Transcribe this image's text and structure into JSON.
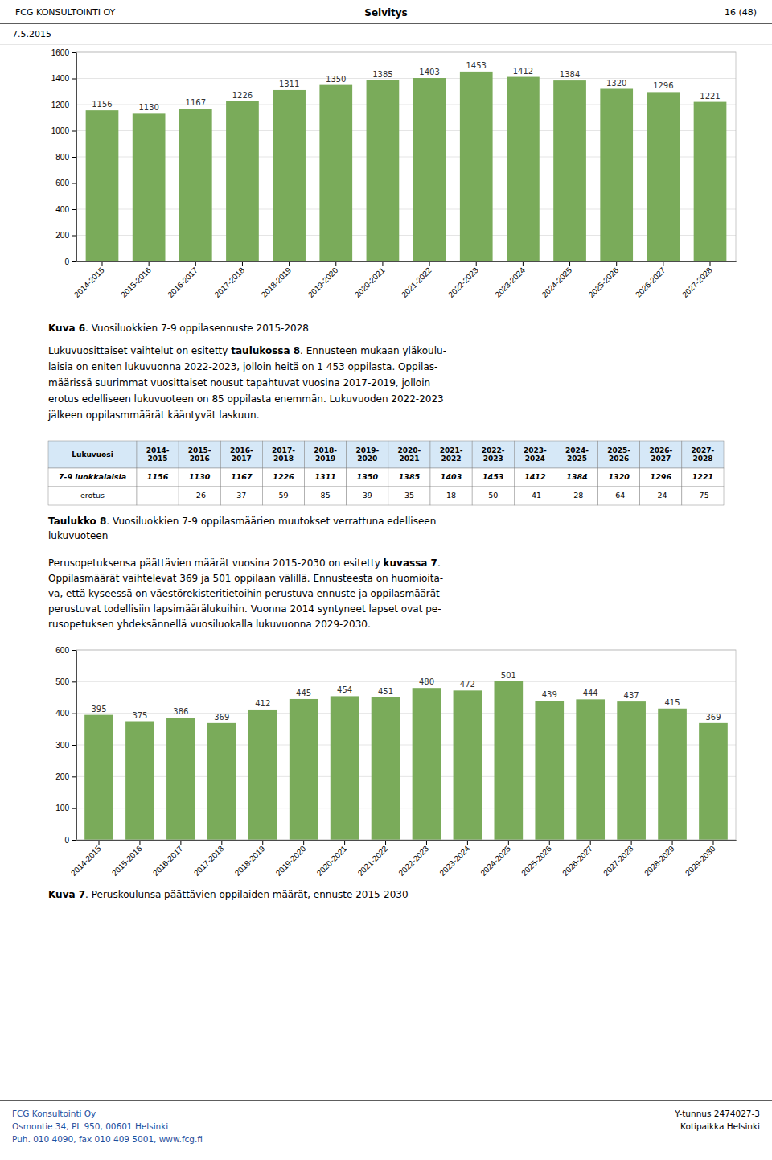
{
  "chart_data": [
    {
      "type": "bar",
      "categories": [
        "2014-2015",
        "2015-2016",
        "2016-2017",
        "2017-2018",
        "2018-2019",
        "2019-2020",
        "2020-2021",
        "2021-2022",
        "2022-2023",
        "2023-2024",
        "2024-2025",
        "2025-2026",
        "2026-2027",
        "2027-2028"
      ],
      "values": [
        1156,
        1130,
        1167,
        1226,
        1311,
        1350,
        1385,
        1403,
        1453,
        1412,
        1384,
        1320,
        1296,
        1221
      ],
      "color": "#7aab5a",
      "ylim": [
        0,
        1600
      ],
      "yticks": [
        0,
        200,
        400,
        600,
        800,
        1000,
        1200,
        1400,
        1600
      ],
      "grid": true,
      "data_labels": true
    },
    {
      "type": "bar",
      "categories": [
        "2014-2015",
        "2015-2016",
        "2016-2017",
        "2017-2018",
        "2018-2019",
        "2019-2020",
        "2020-2021",
        "2021-2022",
        "2022-2023",
        "2023-2024",
        "2024-2025",
        "2025-2026",
        "2026-2027",
        "2027-2028",
        "2028-2029",
        "2029-2030"
      ],
      "values": [
        395,
        375,
        386,
        369,
        412,
        445,
        454,
        451,
        480,
        472,
        501,
        439,
        444,
        437,
        415,
        369
      ],
      "color": "#7aab5a",
      "ylim": [
        0,
        600
      ],
      "yticks": [
        0,
        100,
        200,
        300,
        400,
        500,
        600
      ],
      "grid": true,
      "data_labels": true
    }
  ],
  "document": {
    "header": {
      "left": "FCG KONSULTOINTI OY",
      "center": "Selvitys",
      "right": "16 (48)"
    },
    "date": "7.5.2015",
    "caption1": {
      "bold": "Kuva 6",
      "text": ". Vuosiluokkien 7-9 oppilasennuste 2015-2028"
    },
    "text1": {
      "first": {
        "pre": "Lukuvuosittaiset vaihtelut on esitetty ",
        "bold": "taulukossa 8",
        "post": ". Ennusteen mukaan yläkoulu-"
      },
      "lines": [
        "laisia on eniten lukuvuonna 2022-2023, jolloin heitä on 1 453 oppilasta. Oppilas-",
        "määrissä suurimmat vuosittaiset nousut tapahtuvat vuosina 2017-2019, jolloin",
        "erotus edelliseen lukuvuoteen on 85 oppilasta enemmän. Lukuvuoden 2022-2023",
        "jälkeen oppilasmmäärät kääntyvät laskuun."
      ]
    },
    "table": {
      "header": [
        "Lukuvuosi",
        "2014-\n2015",
        "2015-\n2016",
        "2016-\n2017",
        "2017-\n2018",
        "2018-\n2019",
        "2019-\n2020",
        "2020-\n2021",
        "2021-\n2022",
        "2022-\n2023",
        "2023-\n2024",
        "2024-\n2025",
        "2025-\n2026",
        "2026-\n2027",
        "2027-\n2028"
      ],
      "rows": [
        {
          "label": "7-9 luokkalaisia",
          "values": [
            1156,
            1130,
            1167,
            1226,
            1311,
            1350,
            1385,
            1403,
            1453,
            1412,
            1384,
            1320,
            1296,
            1221
          ]
        },
        {
          "label": "erotus",
          "values": [
            null,
            -26,
            37,
            59,
            85,
            39,
            35,
            18,
            50,
            -41,
            -28,
            -64,
            -24,
            -75
          ]
        }
      ]
    },
    "table_caption": {
      "bold": "Taulukko 8",
      "lines": [
        ". Vuosiluokkien 7-9 oppilasmäärien muutokset verrattuna edelliseen",
        "lukuvuoteen"
      ]
    },
    "text2": {
      "first": {
        "pre": "Perusopetuksensa päättävien määrät vuosina 2015-2030 on esitetty ",
        "bold": "kuvassa 7",
        "post": "."
      },
      "lines": [
        "Oppilasmäärät vaihtelevat 369 ja 501 oppilaan välillä. Ennusteesta on huomioita-",
        "va, että kyseessä on väestörekisteritietoihin perustuva ennuste ja oppilasmäärät",
        "perustuvat todellisiin lapsimäärälukuihin. Vuonna 2014 syntyneet lapset ovat pe-",
        "rusopetuksen yhdeksännellä vuosiluokalla lukuvuonna 2029-2030."
      ]
    },
    "caption2": {
      "bold": "Kuva 7",
      "text": ". Peruskoulunsa päättävien oppilaiden määrät, ennuste 2015-2030"
    },
    "footer": {
      "left": [
        "FCG Konsultointi Oy",
        "Osmontie 34, PL 950, 00601 Helsinki",
        "Puh. 010 4090, fax 010 409 5001, www.fcg.fi"
      ],
      "right": [
        "Y-tunnus 2474027-3",
        "Kotipaikka Helsinki"
      ]
    }
  }
}
